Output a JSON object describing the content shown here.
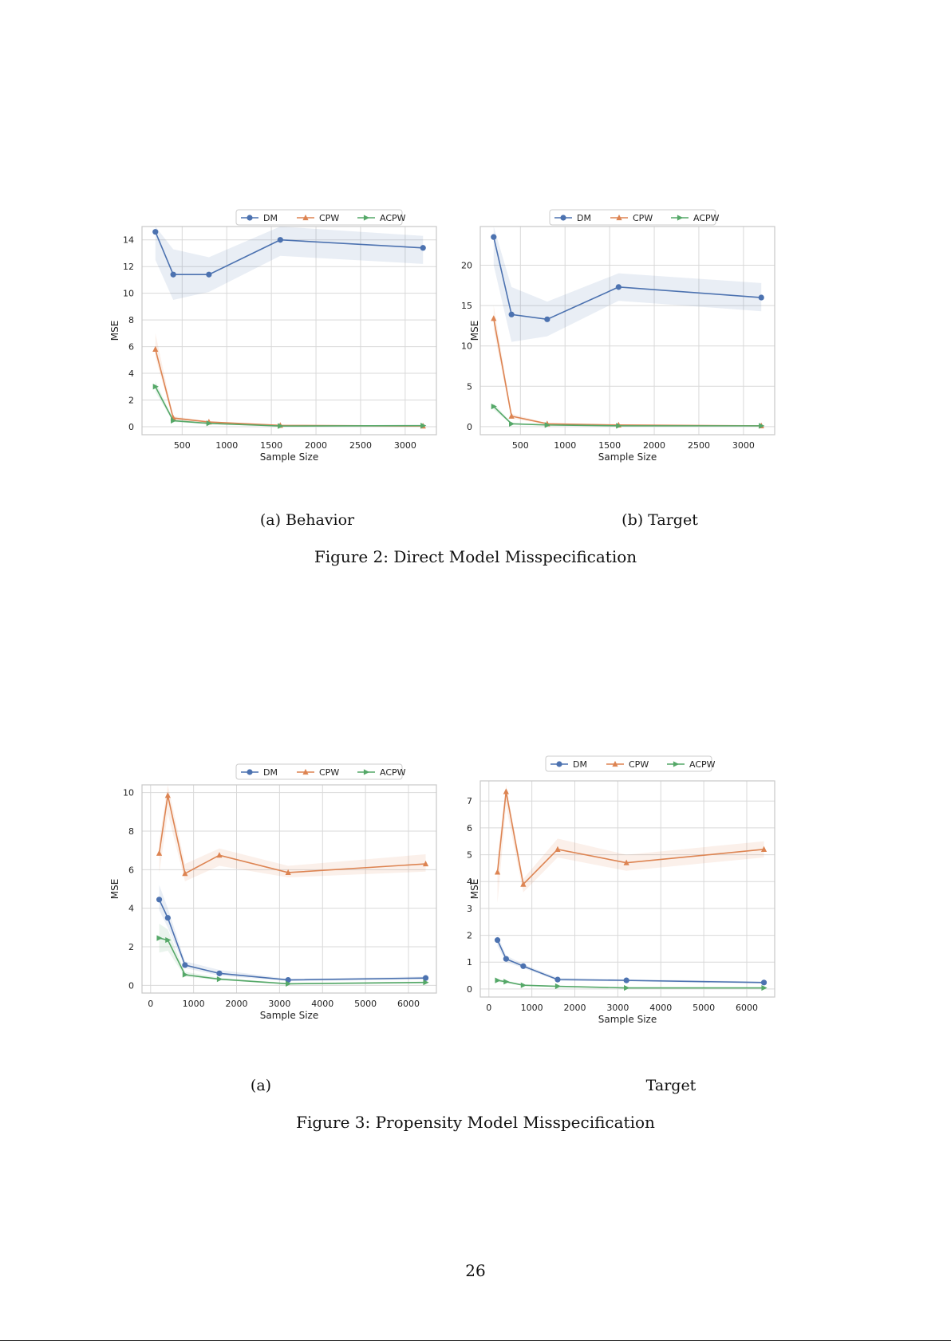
{
  "figures": [
    {
      "caption": "Figure 2: Direct Model Misspecification",
      "subcaptions": [
        "(a) Behavior",
        "(b) Target"
      ]
    },
    {
      "caption": "Figure 3: Propensity Model Misspecification",
      "subcaptions": [
        "(a)",
        "Target"
      ]
    }
  ],
  "page_number": "26",
  "colors": {
    "DM": "#4c72b0",
    "CPW": "#dd8452",
    "ACPW": "#55a868"
  },
  "chart_data": [
    {
      "type": "line",
      "xlabel": "Sample Size",
      "ylabel": "MSE",
      "xlim": [
        50,
        3350
      ],
      "ylim": [
        -0.6,
        15.0
      ],
      "xticks": [
        500,
        1000,
        1500,
        2000,
        2500,
        3000
      ],
      "yticks": [
        0,
        2,
        4,
        6,
        8,
        10,
        12,
        14
      ],
      "legend_position": "top-center",
      "x": [
        200,
        400,
        800,
        1600,
        3200
      ],
      "series": [
        {
          "name": "DM",
          "marker": "circle",
          "values": [
            14.6,
            11.4,
            11.4,
            14.0,
            13.4
          ],
          "band_low": [
            12.5,
            9.5,
            10.1,
            12.8,
            12.2
          ],
          "band_high": [
            15.0,
            13.3,
            12.7,
            15.0,
            14.3
          ]
        },
        {
          "name": "CPW",
          "marker": "triangle",
          "values": [
            5.8,
            0.65,
            0.35,
            0.1,
            0.05
          ],
          "band_low": [
            5.2,
            0.5,
            0.3,
            0.08,
            0.04
          ],
          "band_high": [
            7.0,
            0.8,
            0.4,
            0.12,
            0.06
          ]
        },
        {
          "name": "ACPW",
          "marker": "triangle-right",
          "values": [
            3.0,
            0.45,
            0.25,
            0.05,
            0.08
          ],
          "band_low": [
            2.6,
            0.35,
            0.2,
            0.04,
            0.06
          ],
          "band_high": [
            3.4,
            0.55,
            0.3,
            0.06,
            0.1
          ]
        }
      ]
    },
    {
      "type": "line",
      "xlabel": "Sample Size",
      "ylabel": "MSE",
      "xlim": [
        50,
        3350
      ],
      "ylim": [
        -1.0,
        24.8
      ],
      "xticks": [
        500,
        1000,
        1500,
        2000,
        2500,
        3000
      ],
      "yticks": [
        0,
        5,
        10,
        15,
        20
      ],
      "legend_position": "top-center",
      "x": [
        200,
        400,
        800,
        1600,
        3200
      ],
      "series": [
        {
          "name": "DM",
          "marker": "circle",
          "values": [
            23.5,
            13.9,
            13.3,
            17.3,
            16.0
          ],
          "band_low": [
            20.0,
            10.5,
            11.2,
            15.6,
            14.3
          ],
          "band_high": [
            24.8,
            17.3,
            15.5,
            19.0,
            17.8
          ]
        },
        {
          "name": "CPW",
          "marker": "triangle",
          "values": [
            13.4,
            1.3,
            0.35,
            0.2,
            0.1
          ],
          "band_low": [
            12.0,
            1.0,
            0.3,
            0.15,
            0.08
          ],
          "band_high": [
            15.0,
            1.6,
            0.45,
            0.25,
            0.12
          ]
        },
        {
          "name": "ACPW",
          "marker": "triangle-right",
          "values": [
            2.5,
            0.35,
            0.2,
            0.1,
            0.1
          ],
          "band_low": [
            2.1,
            0.3,
            0.15,
            0.08,
            0.08
          ],
          "band_high": [
            2.9,
            0.45,
            0.25,
            0.12,
            0.12
          ]
        }
      ]
    },
    {
      "type": "line",
      "xlabel": "Sample Size",
      "ylabel": "MSE",
      "xlim": [
        -200,
        6650
      ],
      "ylim": [
        -0.4,
        10.4
      ],
      "xticks": [
        0,
        1000,
        2000,
        3000,
        4000,
        5000,
        6000
      ],
      "yticks": [
        0,
        2,
        4,
        6,
        8,
        10
      ],
      "legend_position": "top-center",
      "x": [
        200,
        400,
        800,
        1600,
        3200,
        6400
      ],
      "series": [
        {
          "name": "DM",
          "marker": "circle",
          "values": [
            4.45,
            3.5,
            1.05,
            0.62,
            0.28,
            0.38
          ],
          "band_low": [
            3.9,
            3.0,
            0.9,
            0.5,
            0.22,
            0.3
          ],
          "band_high": [
            5.2,
            4.0,
            1.25,
            0.8,
            0.34,
            0.46
          ]
        },
        {
          "name": "CPW",
          "marker": "triangle",
          "values": [
            6.85,
            9.85,
            5.8,
            6.75,
            5.85,
            6.3
          ],
          "band_low": [
            5.8,
            8.9,
            5.4,
            6.2,
            5.6,
            5.9
          ],
          "band_high": [
            7.5,
            10.4,
            6.3,
            7.1,
            6.2,
            6.8
          ]
        },
        {
          "name": "ACPW",
          "marker": "triangle-right",
          "values": [
            2.45,
            2.35,
            0.55,
            0.32,
            0.08,
            0.15
          ],
          "band_low": [
            1.7,
            1.8,
            0.45,
            0.26,
            0.05,
            0.1
          ],
          "band_high": [
            3.2,
            2.9,
            0.7,
            0.4,
            0.12,
            0.2
          ]
        }
      ]
    },
    {
      "type": "line",
      "xlabel": "Sample Size",
      "ylabel": "MSE",
      "xlim": [
        -200,
        6650
      ],
      "ylim": [
        -0.3,
        7.75
      ],
      "xticks": [
        0,
        1000,
        2000,
        3000,
        4000,
        5000,
        6000
      ],
      "yticks": [
        0,
        1,
        2,
        3,
        4,
        5,
        6,
        7
      ],
      "legend_position": "top-center",
      "x": [
        200,
        400,
        800,
        1600,
        3200,
        6400
      ],
      "series": [
        {
          "name": "DM",
          "marker": "circle",
          "values": [
            1.82,
            1.12,
            0.85,
            0.35,
            0.32,
            0.24
          ],
          "band_low": [
            1.6,
            1.0,
            0.78,
            0.3,
            0.28,
            0.2
          ],
          "band_high": [
            2.0,
            1.25,
            0.92,
            0.42,
            0.36,
            0.28
          ]
        },
        {
          "name": "CPW",
          "marker": "triangle",
          "values": [
            4.35,
            7.35,
            3.9,
            5.2,
            4.7,
            5.2
          ],
          "band_low": [
            3.2,
            6.8,
            3.6,
            4.9,
            4.4,
            4.9
          ],
          "band_high": [
            4.9,
            7.6,
            4.1,
            5.6,
            5.0,
            5.5
          ]
        },
        {
          "name": "ACPW",
          "marker": "triangle-right",
          "values": [
            0.32,
            0.27,
            0.14,
            0.1,
            0.04,
            0.04
          ],
          "band_low": [
            0.26,
            0.22,
            0.12,
            0.08,
            0.03,
            0.03
          ],
          "band_high": [
            0.38,
            0.32,
            0.16,
            0.12,
            0.05,
            0.05
          ]
        }
      ]
    }
  ]
}
